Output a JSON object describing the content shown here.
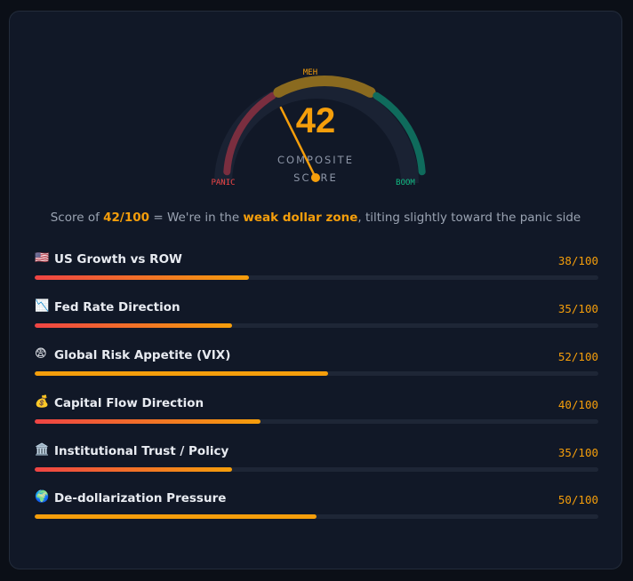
{
  "gauge": {
    "score": 42,
    "label_top": "MEH",
    "label_left": "PANIC",
    "label_right": "BOOM",
    "caption_line1": "COMPOSITE",
    "caption_line2": "SCORE"
  },
  "summary": {
    "prefix": "Score of ",
    "score": "42/100",
    "mid": " = We're in the ",
    "zone": "weak dollar zone",
    "suffix": ", tilting slightly toward the panic side"
  },
  "metrics": [
    {
      "icon": "🇺🇸",
      "label": "US Growth vs ROW",
      "value": "38/100",
      "score": 38,
      "style": "low"
    },
    {
      "icon": "📉",
      "label": "Fed Rate Direction",
      "value": "35/100",
      "score": 35,
      "style": "low"
    },
    {
      "icon": "😨",
      "label": "Global Risk Appetite (VIX)",
      "value": "52/100",
      "score": 52,
      "style": "mid"
    },
    {
      "icon": "💰",
      "label": "Capital Flow Direction",
      "value": "40/100",
      "score": 40,
      "style": "low"
    },
    {
      "icon": "🏛️",
      "label": "Institutional Trust / Policy",
      "value": "35/100",
      "score": 35,
      "style": "low"
    },
    {
      "icon": "🌍",
      "label": "De-dollarization Pressure",
      "value": "50/100",
      "score": 50,
      "style": "mid"
    }
  ],
  "colors": {
    "panic": "#7a2e3f",
    "meh": "#8a6a1f",
    "boom": "#0f6b5c",
    "accent": "#f59e0b",
    "bar_low_start": "#ef4444",
    "bar_low_end": "#f59e0b",
    "bar_mid": "#f59e0b"
  }
}
